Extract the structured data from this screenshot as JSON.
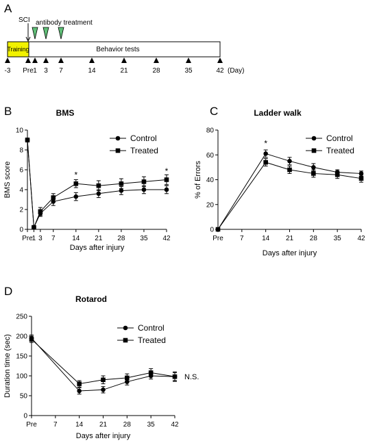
{
  "timeline": {
    "panel": "A",
    "sci_label": "SCI",
    "treatment_label": "antibody treatment",
    "training_label": "Training",
    "behavior_label": "Behavior tests",
    "day_unit": "(Day)",
    "ticks": [
      "-3",
      "Pre",
      "1",
      "3",
      "7",
      "14",
      "21",
      "28",
      "35",
      "42"
    ],
    "treatment_days": [
      "1",
      "3",
      "7"
    ],
    "colors": {
      "training": "#f2f200",
      "treatment": "#5fbf77"
    }
  },
  "chart_data": [
    {
      "panel": "B",
      "type": "line",
      "title": "BMS",
      "xlabel": "Days after injury",
      "ylabel": "BMS score",
      "categories": [
        "Pre",
        "1",
        "3",
        "7",
        "14",
        "21",
        "28",
        "35",
        "42"
      ],
      "x": [
        -1,
        1,
        3,
        7,
        14,
        21,
        28,
        35,
        42
      ],
      "xticks": [
        "Pre",
        "1",
        "3",
        "7",
        "14",
        "21",
        "28",
        "35",
        "42"
      ],
      "xtick_pos": [
        -1,
        1,
        3,
        7,
        14,
        21,
        28,
        35,
        42
      ],
      "xlim": [
        -1,
        42
      ],
      "ylim": [
        0,
        10
      ],
      "yticks": [
        0,
        2,
        4,
        6,
        8,
        10
      ],
      "legend": "top-right",
      "series": [
        {
          "name": "Control",
          "marker": "circle",
          "values": [
            9,
            0.2,
            1.6,
            2.8,
            3.3,
            3.6,
            3.9,
            4.0,
            4.0
          ],
          "errors": [
            0.2,
            0.15,
            0.3,
            0.4,
            0.4,
            0.4,
            0.4,
            0.4,
            0.4
          ]
        },
        {
          "name": "Treated",
          "marker": "square",
          "values": [
            9,
            0.2,
            1.8,
            3.2,
            4.6,
            4.4,
            4.6,
            4.8,
            5.0
          ],
          "errors": [
            0.2,
            0.15,
            0.4,
            0.4,
            0.4,
            0.5,
            0.5,
            0.5,
            0.5
          ]
        }
      ],
      "annotations": [
        {
          "x": 14,
          "y": 5.2,
          "text": "*"
        },
        {
          "x": 42,
          "y": 5.6,
          "text": "*"
        }
      ]
    },
    {
      "panel": "C",
      "type": "line",
      "title": "Ladder walk",
      "xlabel": "Days after injury",
      "ylabel": "% of Errors",
      "categories": [
        "Pre",
        "14",
        "21",
        "28",
        "35",
        "42"
      ],
      "x": [
        0,
        14,
        21,
        28,
        35,
        42
      ],
      "xticks": [
        "Pre",
        "7",
        "14",
        "21",
        "28",
        "35",
        "42"
      ],
      "xtick_pos": [
        0,
        7,
        14,
        21,
        28,
        35,
        42
      ],
      "xlim": [
        0,
        42
      ],
      "ylim": [
        0,
        80
      ],
      "yticks": [
        0,
        20,
        40,
        60,
        80
      ],
      "legend": "top-right",
      "series": [
        {
          "name": "Control",
          "marker": "circle",
          "values": [
            0,
            61,
            55,
            50,
            46,
            45
          ],
          "errors": [
            0,
            3,
            3,
            3,
            2,
            2
          ]
        },
        {
          "name": "Treated",
          "marker": "square",
          "values": [
            0,
            54,
            48,
            45,
            44,
            41
          ],
          "errors": [
            0,
            3,
            3,
            3,
            3,
            3
          ]
        }
      ],
      "annotations": [
        {
          "x": 14,
          "y": 67,
          "text": "*"
        }
      ]
    },
    {
      "panel": "D",
      "type": "line",
      "title": "Rotarod",
      "xlabel": "Days after injury",
      "ylabel": "Duration time (sec)",
      "categories": [
        "Pre",
        "14",
        "21",
        "28",
        "35",
        "42"
      ],
      "x": [
        0,
        14,
        21,
        28,
        35,
        42
      ],
      "xticks": [
        "Pre",
        "7",
        "14",
        "21",
        "28",
        "35",
        "42"
      ],
      "xtick_pos": [
        0,
        7,
        14,
        21,
        28,
        35,
        42
      ],
      "xlim": [
        0,
        42
      ],
      "ylim": [
        0,
        250
      ],
      "yticks": [
        0,
        50,
        100,
        150,
        200,
        250
      ],
      "legend": "top-right",
      "series": [
        {
          "name": "Control",
          "marker": "circle",
          "values": [
            195,
            62,
            65,
            85,
            100,
            98
          ],
          "errors": [
            8,
            8,
            8,
            8,
            8,
            10
          ]
        },
        {
          "name": "Treated",
          "marker": "square",
          "values": [
            192,
            80,
            90,
            95,
            108,
            98
          ],
          "errors": [
            8,
            8,
            10,
            10,
            10,
            12
          ]
        }
      ],
      "annotations": [
        {
          "x": 42,
          "y": 98,
          "text": "N.S."
        }
      ]
    }
  ]
}
